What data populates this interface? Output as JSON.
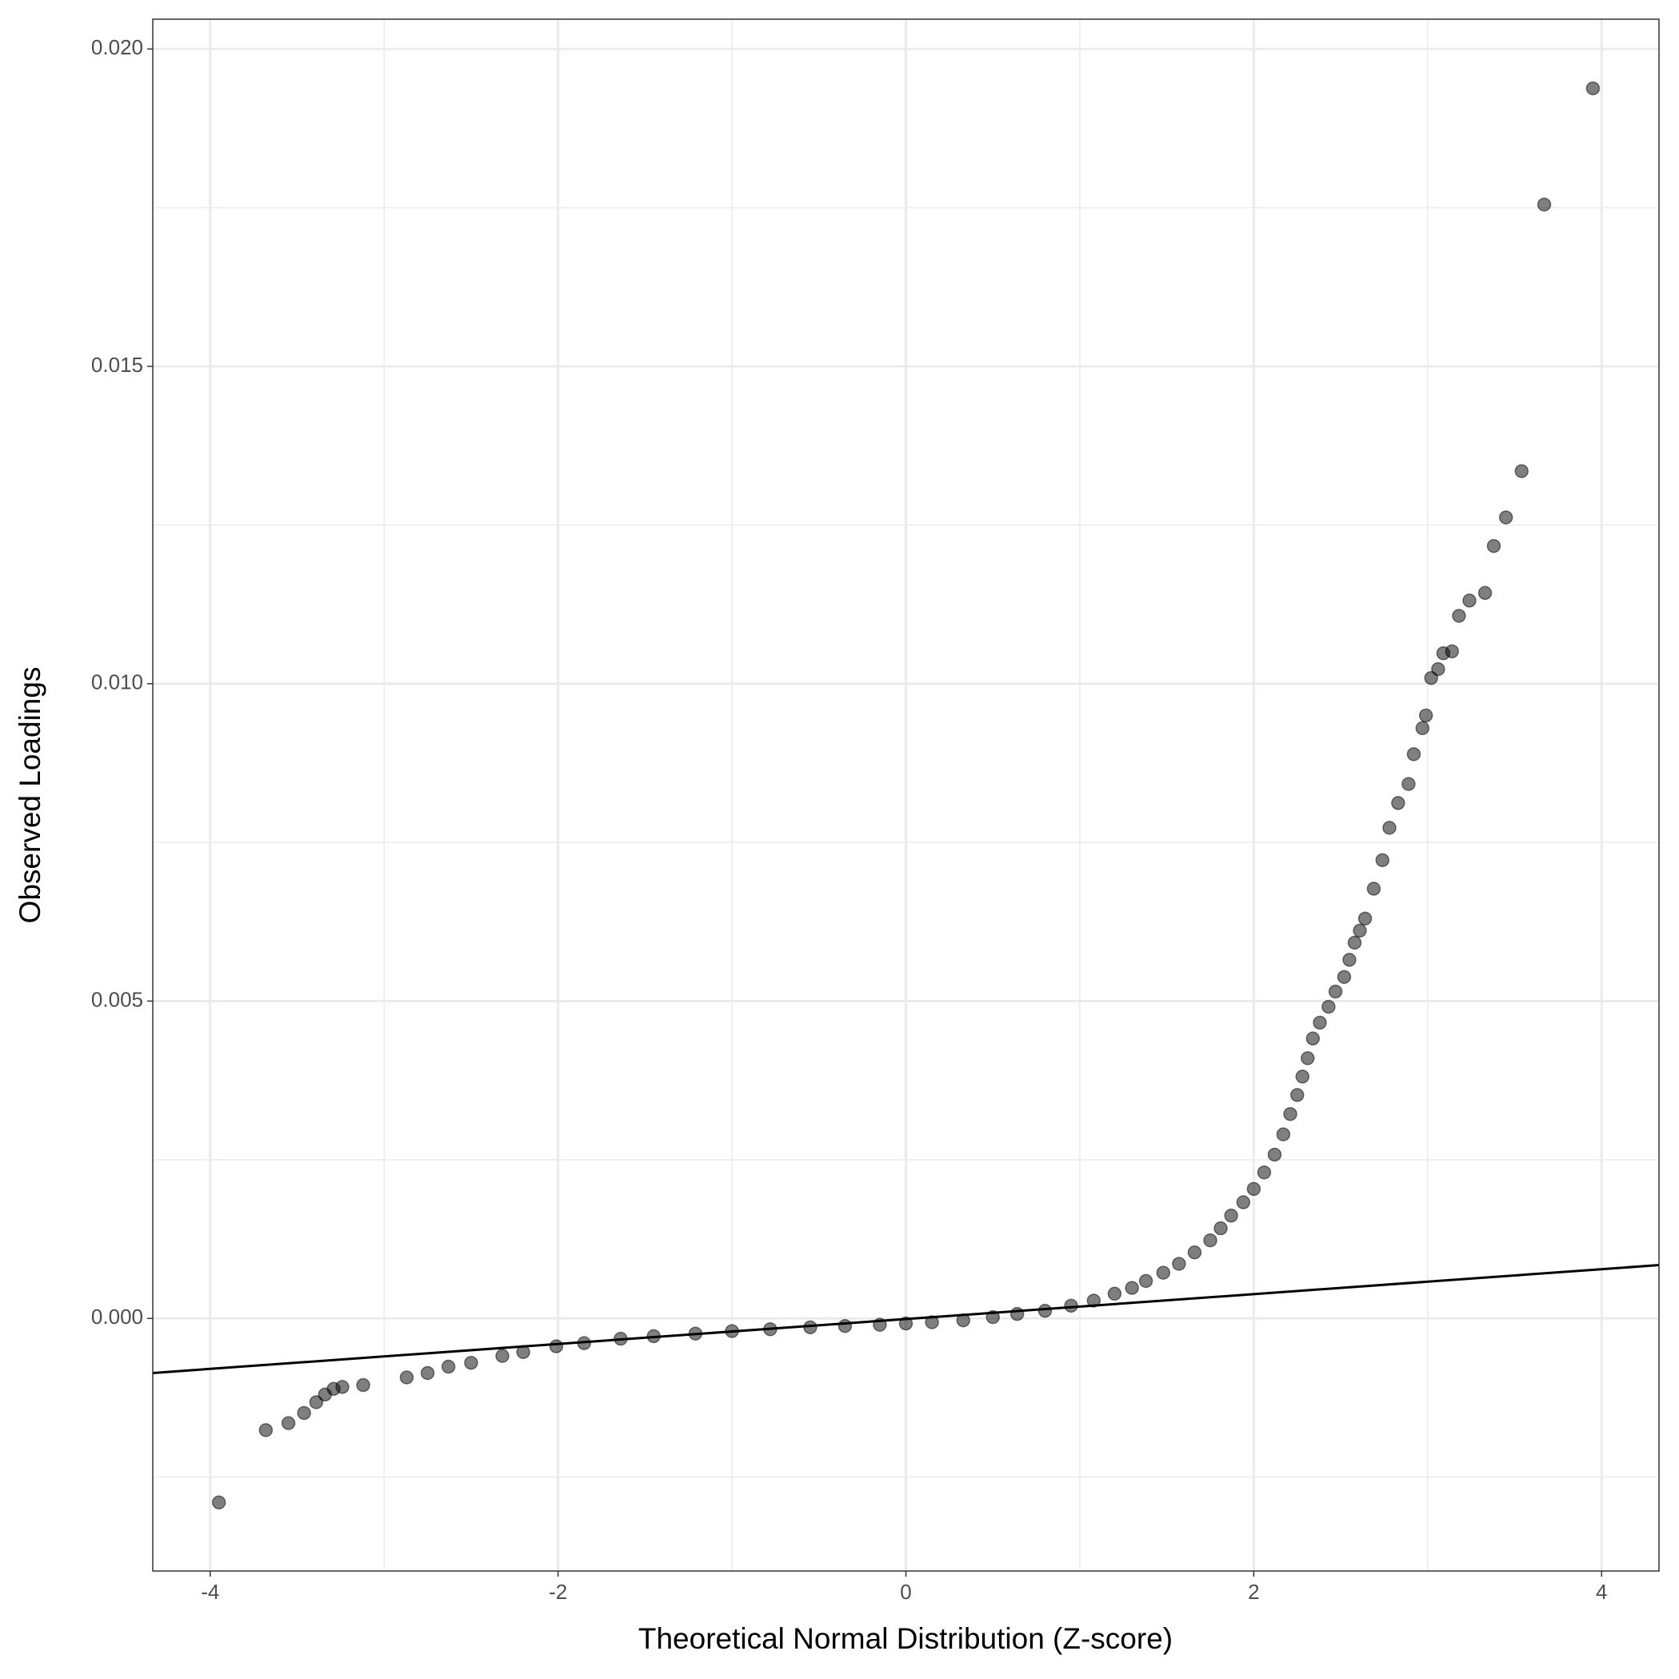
{
  "chart_data": {
    "type": "scatter",
    "x_label": "Theoretical Normal Distribution (Z-score)",
    "y_label": "Observed Loadings",
    "xlim": [
      -4.33,
      4.33
    ],
    "ylim": [
      -0.00398,
      0.02047
    ],
    "xticks": [
      -4,
      -2,
      0,
      2,
      4
    ],
    "yticks": [
      {
        "value": 0,
        "label": "0.000"
      },
      {
        "value": 0.005,
        "label": "0.005"
      },
      {
        "value": 0.01,
        "label": "0.010"
      },
      {
        "value": 0.015,
        "label": "0.015"
      },
      {
        "value": 0.02,
        "label": "0.020"
      }
    ],
    "xminor": [
      -3,
      -1,
      1,
      3
    ],
    "yminor": [
      -0.0025,
      0.0025,
      0.0075,
      0.0125,
      0.0175
    ],
    "grid": true,
    "color": "#000000",
    "opacity": 0.5,
    "reference_line": {
      "x": [
        -4.33,
        4.33
      ],
      "y": [
        -0.00086,
        0.00084
      ],
      "color": "#000000"
    },
    "x": [
      -3.95,
      -3.68,
      -3.55,
      -3.46,
      -3.39,
      -3.34,
      -3.29,
      -3.24,
      -3.12,
      -2.87,
      -2.75,
      -2.63,
      -2.5,
      -2.32,
      -2.2,
      -2.01,
      -1.85,
      -1.64,
      -1.45,
      -1.21,
      -1.0,
      -0.78,
      -0.55,
      -0.35,
      -0.15,
      0,
      0.15,
      0.33,
      0.5,
      0.64,
      0.8,
      0.95,
      1.08,
      1.2,
      1.3,
      1.38,
      1.48,
      1.57,
      1.66,
      1.75,
      1.81,
      1.87,
      1.94,
      2.0,
      2.06,
      2.12,
      2.17,
      2.21,
      2.25,
      2.28,
      2.31,
      2.34,
      2.38,
      2.43,
      2.47,
      2.52,
      2.55,
      2.58,
      2.61,
      2.64,
      2.69,
      2.74,
      2.78,
      2.83,
      2.89,
      2.92,
      2.97,
      2.99,
      3.02,
      3.06,
      3.09,
      3.14,
      3.18,
      3.24,
      3.33,
      3.38,
      3.45,
      3.54,
      3.67,
      3.95
    ],
    "y": [
      -0.0029,
      -0.00176,
      -0.00165,
      -0.00149,
      -0.00132,
      -0.0012,
      -0.00111,
      -0.00108,
      -0.00105,
      -0.00093,
      -0.00086,
      -0.00076,
      -0.0007,
      -0.00059,
      -0.00053,
      -0.00044,
      -0.00039,
      -0.00032,
      -0.00028,
      -0.00024,
      -0.0002,
      -0.00017,
      -0.00014,
      -0.00012,
      -0.0001,
      -8e-05,
      -6e-05,
      -3e-05,
      2e-05,
      7e-05,
      0.00012,
      0.0002,
      0.00028,
      0.00039,
      0.00048,
      0.00059,
      0.00072,
      0.00086,
      0.00104,
      0.00123,
      0.00142,
      0.00162,
      0.00183,
      0.00204,
      0.0023,
      0.00258,
      0.0029,
      0.00322,
      0.00352,
      0.00381,
      0.0041,
      0.00441,
      0.00466,
      0.00491,
      0.00515,
      0.00538,
      0.00565,
      0.00592,
      0.00611,
      0.0063,
      0.00677,
      0.00722,
      0.00773,
      0.00812,
      0.00842,
      0.00889,
      0.0093,
      0.0095,
      0.01009,
      0.01023,
      0.01048,
      0.01051,
      0.01107,
      0.01131,
      0.01143,
      0.01217,
      0.01262,
      0.01335,
      0.01755,
      0.01938
    ]
  }
}
